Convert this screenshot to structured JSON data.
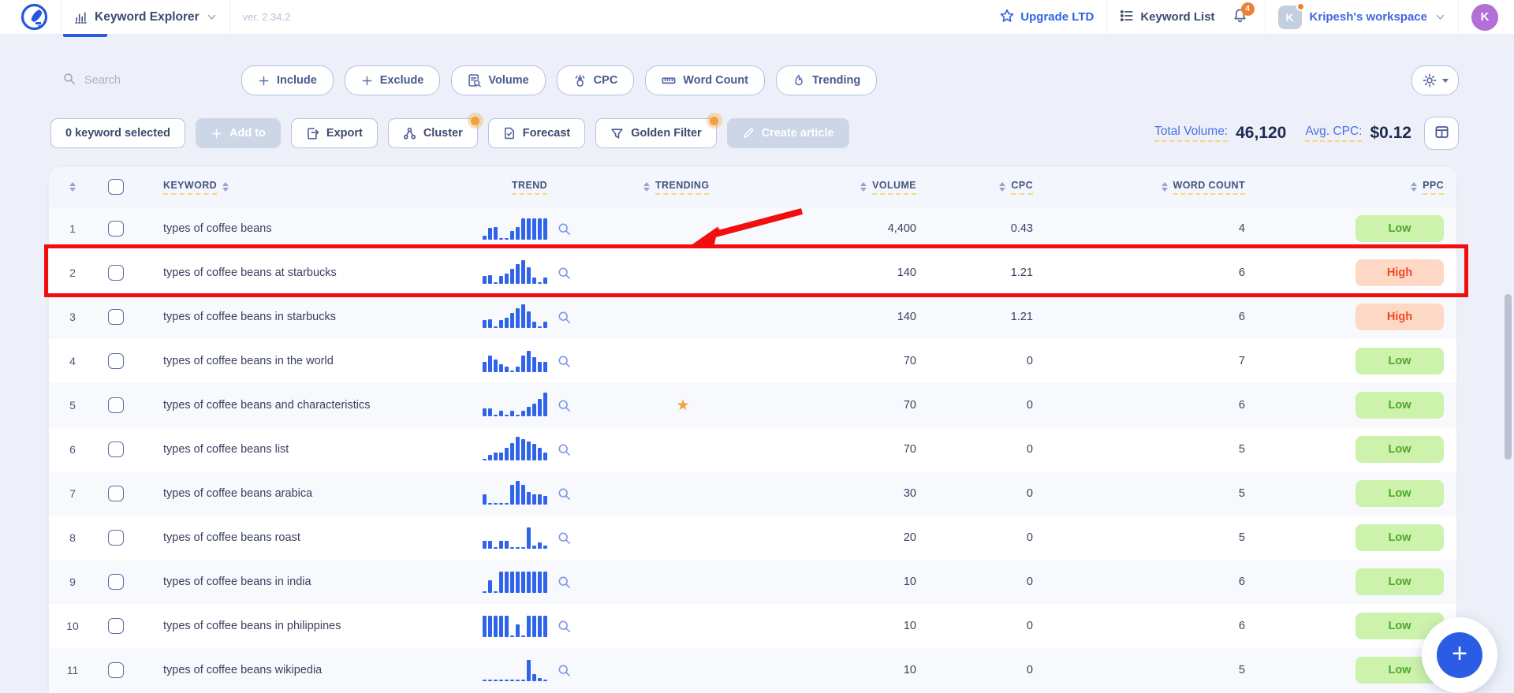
{
  "navbar": {
    "app_title": "Keyword Explorer",
    "version": "ver. 2.34.2",
    "upgrade_label": "Upgrade LTD",
    "keyword_list_label": "Keyword List",
    "notification_count": "4",
    "workspace_name": "Kripesh's workspace",
    "workspace_initial": "K",
    "user_initial": "K"
  },
  "filter_bar": {
    "search_placeholder": "Search",
    "buttons": [
      {
        "label": "Include",
        "icon": "plus"
      },
      {
        "label": "Exclude",
        "icon": "plus"
      },
      {
        "label": "Volume",
        "icon": "volume"
      },
      {
        "label": "CPC",
        "icon": "tap"
      },
      {
        "label": "Word Count",
        "icon": "ruler"
      },
      {
        "label": "Trending",
        "icon": "flame"
      }
    ]
  },
  "toolbar": {
    "selected_label": "0 keyword selected",
    "add_to_label": "Add to",
    "export_label": "Export",
    "cluster_label": "Cluster",
    "forecast_label": "Forecast",
    "golden_filter_label": "Golden Filter",
    "create_article_label": "Create article",
    "total_volume_label": "Total Volume:",
    "total_volume_value": "46,120",
    "avg_cpc_label": "Avg. CPC:",
    "avg_cpc_value": "$0.12",
    "fab_label": "+"
  },
  "table": {
    "headers": {
      "keyword": "KEYWORD",
      "trend": "TREND",
      "trending": "TRENDING",
      "volume": "VOLUME",
      "cpc": "CPC",
      "word_count": "WORD COUNT",
      "ppc": "PPC"
    },
    "rows": [
      {
        "num": "1",
        "keyword": "types of coffee beans",
        "trend": [
          18,
          50,
          55,
          8,
          8,
          38,
          55,
          90,
          90,
          90,
          90,
          90
        ],
        "trending_star": false,
        "volume": "4,400",
        "cpc": "0.43",
        "word_count": "4",
        "ppc": "Low"
      },
      {
        "num": "2",
        "keyword": "types of coffee beans at starbucks",
        "trend": [
          35,
          38,
          8,
          35,
          45,
          62,
          85,
          100,
          70,
          28,
          8,
          28
        ],
        "trending_star": false,
        "volume": "140",
        "cpc": "1.21",
        "word_count": "6",
        "ppc": "High",
        "highlighted": true
      },
      {
        "num": "3",
        "keyword": "types of coffee beans in starbucks",
        "trend": [
          35,
          38,
          8,
          35,
          45,
          62,
          85,
          100,
          70,
          28,
          8,
          28
        ],
        "trending_star": false,
        "volume": "140",
        "cpc": "1.21",
        "word_count": "6",
        "ppc": "High"
      },
      {
        "num": "4",
        "keyword": "types of coffee beans in the world",
        "trend": [
          45,
          70,
          55,
          35,
          25,
          8,
          25,
          70,
          90,
          65,
          45,
          45
        ],
        "trending_star": false,
        "volume": "70",
        "cpc": "0",
        "word_count": "7",
        "ppc": "Low"
      },
      {
        "num": "5",
        "keyword": "types of coffee beans and characteristics",
        "trend": [
          35,
          35,
          8,
          25,
          8,
          25,
          8,
          25,
          40,
          55,
          75,
          100
        ],
        "trending_star": true,
        "volume": "70",
        "cpc": "0",
        "word_count": "6",
        "ppc": "Low"
      },
      {
        "num": "6",
        "keyword": "types of coffee beans list",
        "trend": [
          8,
          25,
          35,
          35,
          55,
          75,
          100,
          90,
          80,
          70,
          55,
          35
        ],
        "trending_star": false,
        "volume": "70",
        "cpc": "0",
        "word_count": "5",
        "ppc": "Low"
      },
      {
        "num": "7",
        "keyword": "types of coffee beans arabica",
        "trend": [
          45,
          8,
          8,
          8,
          8,
          85,
          100,
          85,
          55,
          45,
          45,
          38
        ],
        "trending_star": false,
        "volume": "30",
        "cpc": "0",
        "word_count": "5",
        "ppc": "Low"
      },
      {
        "num": "8",
        "keyword": "types of coffee beans roast",
        "trend": [
          35,
          35,
          8,
          35,
          35,
          8,
          8,
          8,
          90,
          15,
          28,
          15
        ],
        "trending_star": false,
        "volume": "20",
        "cpc": "0",
        "word_count": "5",
        "ppc": "Low"
      },
      {
        "num": "9",
        "keyword": "types of coffee beans in india",
        "trend": [
          8,
          55,
          8,
          90,
          90,
          90,
          90,
          90,
          90,
          90,
          90,
          90
        ],
        "trending_star": false,
        "volume": "10",
        "cpc": "0",
        "word_count": "6",
        "ppc": "Low"
      },
      {
        "num": "10",
        "keyword": "types of coffee beans in philippines",
        "trend": [
          90,
          90,
          90,
          90,
          90,
          8,
          55,
          8,
          90,
          90,
          90,
          90
        ],
        "trending_star": false,
        "volume": "10",
        "cpc": "0",
        "word_count": "6",
        "ppc": "Low"
      },
      {
        "num": "11",
        "keyword": "types of coffee beans wikipedia",
        "trend": [
          8,
          8,
          8,
          8,
          8,
          8,
          8,
          8,
          90,
          30,
          12,
          8
        ],
        "trending_star": false,
        "volume": "10",
        "cpc": "0",
        "word_count": "5",
        "ppc": "Low"
      }
    ]
  },
  "annotations": {
    "highlighted_row_num": "2",
    "red_color": "#f10e0e"
  },
  "colors": {
    "primary_blue": "#2b5ce6",
    "badge_low_bg": "#cdf2ab",
    "badge_low_text": "#4ca928",
    "badge_high_bg": "#fdd8c4",
    "badge_high_text": "#f04a23",
    "star_orange": "#f0a03c",
    "notification_orange": "#ee8035",
    "row_alt_bg": "#f7f9fd"
  }
}
